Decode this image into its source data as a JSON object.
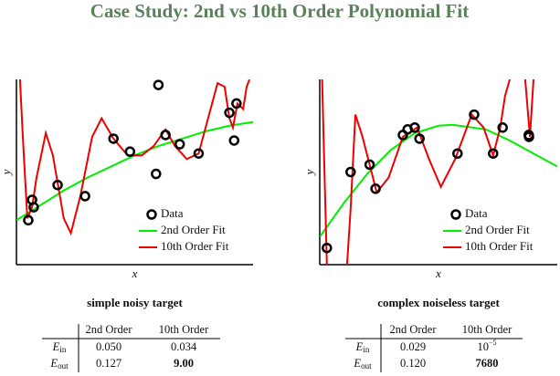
{
  "title": "Case Study: 2nd vs 10th Order Polynomial Fit",
  "chart_data": [
    {
      "type": "scatter",
      "title": "simple noisy target",
      "x_label": "x",
      "y_label": "y",
      "xlim": [
        0,
        1
      ],
      "ylim": [
        0,
        1
      ],
      "legend": "lower right",
      "series": [
        {
          "name": "Data",
          "type": "scatter",
          "color": "#000000",
          "x": [
            0.05,
            0.066,
            0.073,
            0.174,
            0.29,
            0.41,
            0.48,
            0.6,
            0.59,
            0.63,
            0.69,
            0.77,
            0.9,
            0.93,
            0.92
          ],
          "values": [
            0.24,
            0.35,
            0.31,
            0.43,
            0.37,
            0.68,
            0.61,
            0.97,
            0.49,
            0.7,
            0.65,
            0.6,
            0.82,
            0.87,
            0.67
          ]
        },
        {
          "name": "2nd Order Fit",
          "type": "line",
          "color": "#00ee00",
          "x": [
            0,
            0.1,
            0.2,
            0.3,
            0.4,
            0.5,
            0.6,
            0.7,
            0.8,
            0.9,
            1
          ],
          "values": [
            0.24,
            0.32,
            0.4,
            0.47,
            0.53,
            0.59,
            0.64,
            0.68,
            0.72,
            0.75,
            0.77
          ]
        },
        {
          "name": "10th Order Fit",
          "type": "line",
          "color": "#ee0000",
          "x": [
            0.015,
            0.027,
            0.046,
            0.066,
            0.085,
            0.124,
            0.154,
            0.2,
            0.23,
            0.27,
            0.32,
            0.36,
            0.41,
            0.47,
            0.53,
            0.58,
            0.63,
            0.67,
            0.72,
            0.77,
            0.81,
            0.85,
            0.88,
            0.9,
            0.915,
            0.934,
            0.958,
            0.973,
            0.985
          ],
          "values": [
            1.0,
            0.69,
            0.25,
            0.31,
            0.47,
            0.71,
            0.59,
            0.25,
            0.17,
            0.37,
            0.69,
            0.79,
            0.68,
            0.59,
            0.59,
            0.64,
            0.73,
            0.64,
            0.57,
            0.6,
            0.79,
            0.98,
            0.96,
            0.79,
            0.74,
            0.87,
            0.84,
            0.96,
            1.0
          ]
        }
      ]
    },
    {
      "type": "scatter",
      "title": "complex noiseless target",
      "x_label": "x",
      "y_label": "y",
      "xlim": [
        0,
        1
      ],
      "ylim": [
        0,
        1
      ],
      "legend": "lower right",
      "series": [
        {
          "name": "Data",
          "type": "scatter",
          "color": "#000000",
          "x": [
            0.03,
            0.13,
            0.21,
            0.235,
            0.35,
            0.37,
            0.4,
            0.42,
            0.58,
            0.65,
            0.73,
            0.77,
            0.88,
            0.881
          ],
          "values": [
            0.09,
            0.5,
            0.54,
            0.41,
            0.7,
            0.73,
            0.74,
            0.68,
            0.6,
            0.81,
            0.6,
            0.74,
            0.7,
            0.69
          ]
        },
        {
          "name": "2nd Order Fit",
          "type": "line",
          "color": "#00ee00",
          "x": [
            0,
            0.1,
            0.2,
            0.3,
            0.4,
            0.5,
            0.56,
            0.7,
            0.8,
            0.9,
            1
          ],
          "values": [
            0.15,
            0.33,
            0.49,
            0.62,
            0.71,
            0.75,
            0.755,
            0.73,
            0.67,
            0.6,
            0.53
          ]
        },
        {
          "name": "10th Order Fit",
          "type": "line",
          "color": "#ee0000",
          "x": [
            0.01,
            0.02,
            0.03,
            0.07,
            0.115,
            0.13,
            0.15,
            0.18,
            0.24,
            0.29,
            0.35,
            0.41,
            0.46,
            0.51,
            0.57,
            0.64,
            0.69,
            0.73,
            0.76,
            0.78,
            0.8,
            0.83,
            0.865,
            0.885,
            0.9
          ],
          "values": [
            1.0,
            0.5,
            0.0,
            null,
            0.0,
            0.3,
            0.81,
            0.69,
            0.39,
            0.47,
            0.69,
            0.74,
            0.57,
            0.42,
            0.57,
            0.81,
            0.74,
            0.59,
            0.74,
            0.91,
            1.0,
            null,
            1.0,
            0.69,
            1.0
          ]
        }
      ]
    }
  ],
  "tables": [
    {
      "columns": [
        "2nd Order",
        "10th Order"
      ],
      "rows": [
        {
          "symbol": "E",
          "subscript": "in",
          "cells": [
            "0.050",
            "0.034"
          ]
        },
        {
          "symbol": "E",
          "subscript": "out",
          "cells": [
            "0.127",
            "9.00"
          ]
        }
      ],
      "bold_cell": [
        1,
        1
      ]
    },
    {
      "columns": [
        "2nd Order",
        "10th Order"
      ],
      "rows": [
        {
          "symbol": "E",
          "subscript": "in",
          "cells": [
            "0.029",
            {
              "base": "10",
              "exponent": "−5"
            }
          ]
        },
        {
          "symbol": "E",
          "subscript": "out",
          "cells": [
            "0.120",
            "7680"
          ]
        }
      ],
      "bold_cell": [
        1,
        1
      ]
    }
  ]
}
